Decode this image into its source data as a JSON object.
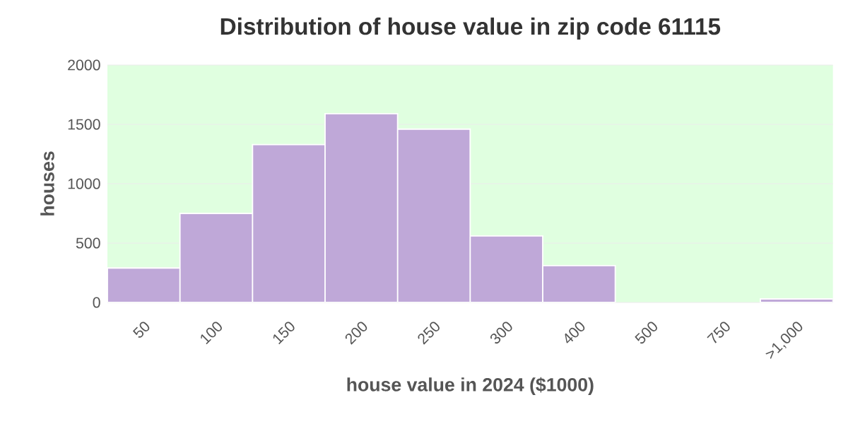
{
  "chart_data": {
    "type": "bar",
    "title": "Distribution of house value in zip code 61115",
    "xlabel": "house value in 2024 ($1000)",
    "ylabel": "houses",
    "categories": [
      "50",
      "100",
      "150",
      "200",
      "250",
      "300",
      "400",
      "500",
      "750",
      ">1,000"
    ],
    "values": [
      290,
      750,
      1330,
      1590,
      1460,
      560,
      310,
      null,
      null,
      30
    ],
    "color": "#bfa8d8",
    "ylim": [
      0,
      2000
    ],
    "yticks": [
      0,
      500,
      1000,
      1500,
      2000
    ],
    "grid": "y"
  }
}
